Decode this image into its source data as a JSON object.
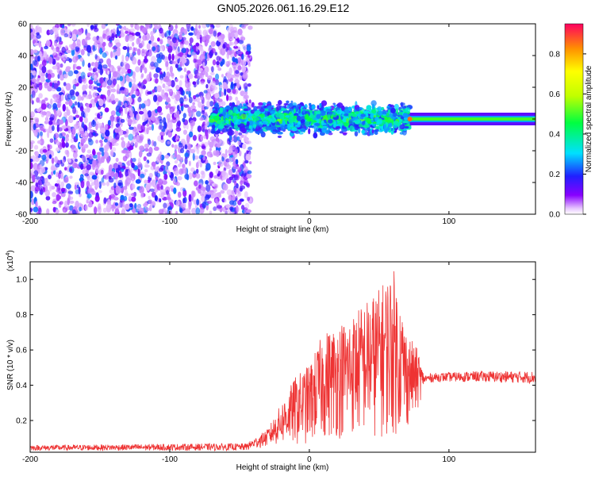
{
  "title": "GN05.2026.061.16.29.E12",
  "chart_data": [
    {
      "type": "heatmap",
      "xlabel": "Height of straight line (km)",
      "ylabel": "Frequency (Hz)",
      "xlim": [
        -200,
        162
      ],
      "ylim": [
        -60,
        60
      ],
      "xticks": [
        -200,
        -100,
        0,
        100
      ],
      "yticks": [
        -60,
        -40,
        -20,
        0,
        20,
        40,
        60
      ],
      "colorbar": {
        "label": "Normalized spectral amplitude",
        "range": [
          0,
          0.95
        ],
        "ticks": [
          0.0,
          0.2,
          0.4,
          0.6,
          0.8
        ]
      },
      "regions": [
        {
          "x_range": [
            -200,
            -42
          ],
          "freq_range": [
            -60,
            60
          ],
          "amplitude": [
            0.05,
            0.25
          ],
          "pattern": "scattered noise"
        },
        {
          "x_range": [
            -70,
            72
          ],
          "freq_range": [
            -12,
            12
          ],
          "amplitude": [
            0.2,
            0.55
          ],
          "pattern": "band"
        },
        {
          "x_range": [
            72,
            162
          ],
          "freq_range": [
            -3,
            3
          ],
          "amplitude": [
            0.4,
            0.5
          ],
          "pattern": "steady line"
        }
      ]
    },
    {
      "type": "line",
      "xlabel": "Height of straight line (km)",
      "ylabel": "SNR (10 * v/v)",
      "y_scale_label": "(x10",
      "y_scale_exp": "4",
      "xlim": [
        -200,
        162
      ],
      "ylim": [
        0.02,
        1.1
      ],
      "xticks": [
        -200,
        -100,
        0,
        100
      ],
      "yticks": [
        0.2,
        0.4,
        0.6,
        0.8,
        1.0
      ],
      "color": "#ee3333",
      "series": [
        {
          "envelope_x": [
            -200,
            -60,
            -45,
            -30,
            -20,
            -10,
            0,
            10,
            20,
            30,
            40,
            50,
            60,
            70,
            78,
            82,
            90,
            120,
            162
          ],
          "envelope_lo": [
            0.03,
            0.03,
            0.03,
            0.05,
            0.06,
            0.05,
            0.06,
            0.08,
            0.09,
            0.1,
            0.1,
            0.09,
            0.1,
            0.15,
            0.25,
            0.41,
            0.42,
            0.42,
            0.41
          ],
          "envelope_hi": [
            0.06,
            0.07,
            0.07,
            0.15,
            0.3,
            0.45,
            0.52,
            0.7,
            0.75,
            0.8,
            0.88,
            0.95,
            1.08,
            0.7,
            0.6,
            0.46,
            0.47,
            0.48,
            0.48
          ]
        }
      ]
    }
  ]
}
